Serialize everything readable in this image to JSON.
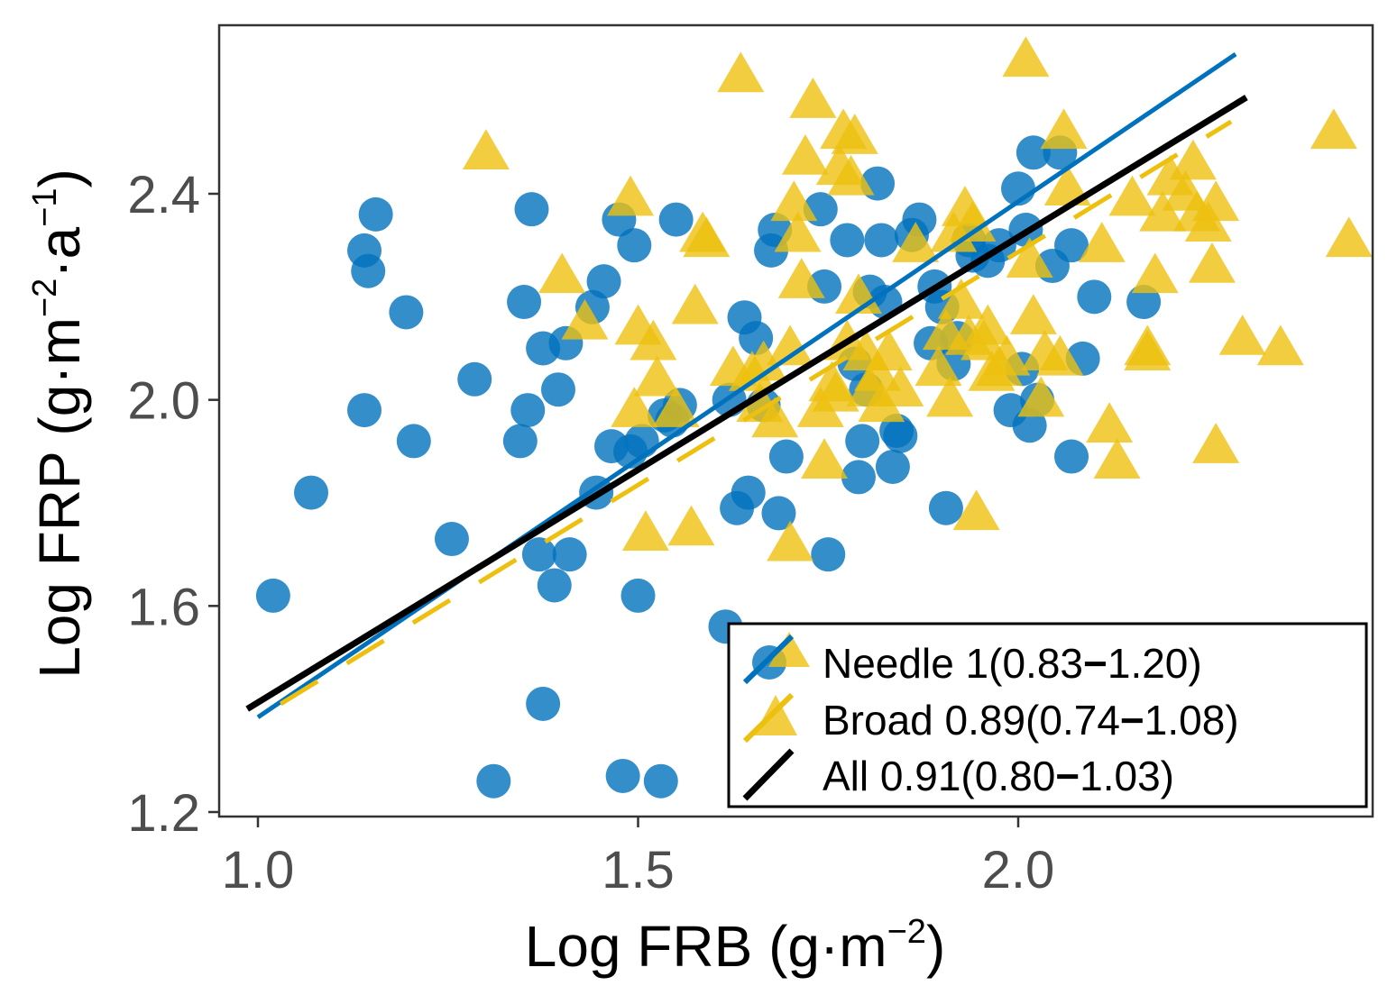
{
  "chart_data": {
    "type": "scatter",
    "title": "",
    "xlabel": "Log FRB (g·m⁻²)",
    "ylabel": "Log FRP (g·m⁻²·a⁻¹)",
    "xlabel_parts": {
      "main": "Log FRB (g·m",
      "sup": "−2",
      "end": ")"
    },
    "ylabel_parts": {
      "main": "Log FRP (g·m",
      "sup1": "−2",
      "mid": "·a",
      "sup2": "−1",
      "end": ")"
    },
    "xlim": [
      0.95,
      2.46
    ],
    "ylim": [
      1.195,
      2.72
    ],
    "xticks": [
      1.0,
      1.5,
      2.0
    ],
    "xtick_labels": [
      "1.0",
      "1.5",
      "2.0"
    ],
    "yticks": [
      1.2,
      1.6,
      2.0,
      2.4
    ],
    "ytick_labels": [
      "1.2",
      "1.6",
      "2.0",
      "2.4"
    ],
    "grid": false,
    "legend_position": "bottom-right",
    "colors": {
      "needle": "#0072BD",
      "broad": "#EDC00F",
      "all": "#000000",
      "axis": "#333333",
      "tick_text": "#4d4d4d"
    },
    "series": [
      {
        "name": "Needle",
        "legend_label": "Needle 1(0.83−1.20)",
        "marker": "circle",
        "color": "#0072BD",
        "points": [
          [
            1.02,
            1.62
          ],
          [
            1.07,
            1.82
          ],
          [
            1.14,
            1.98
          ],
          [
            1.14,
            2.29
          ],
          [
            1.145,
            2.25
          ],
          [
            1.155,
            2.36
          ],
          [
            1.195,
            2.17
          ],
          [
            1.205,
            1.92
          ],
          [
            1.255,
            1.73
          ],
          [
            1.285,
            2.04
          ],
          [
            1.31,
            1.26
          ],
          [
            1.345,
            1.92
          ],
          [
            1.35,
            2.19
          ],
          [
            1.355,
            1.98
          ],
          [
            1.36,
            2.37
          ],
          [
            1.37,
            1.7
          ],
          [
            1.375,
            2.1
          ],
          [
            1.375,
            1.41
          ],
          [
            1.39,
            1.64
          ],
          [
            1.395,
            2.02
          ],
          [
            1.405,
            2.11
          ],
          [
            1.41,
            1.7
          ],
          [
            1.44,
            2.18
          ],
          [
            1.445,
            1.82
          ],
          [
            1.455,
            2.23
          ],
          [
            1.465,
            1.91
          ],
          [
            1.475,
            2.35
          ],
          [
            1.48,
            1.27
          ],
          [
            1.49,
            1.9
          ],
          [
            1.495,
            2.3
          ],
          [
            1.5,
            1.62
          ],
          [
            1.505,
            1.92
          ],
          [
            1.53,
            1.26
          ],
          [
            1.535,
            1.97
          ],
          [
            1.545,
            1.96
          ],
          [
            1.55,
            2.35
          ],
          [
            1.555,
            1.99
          ],
          [
            1.615,
            1.56
          ],
          [
            1.62,
            2.0
          ],
          [
            1.63,
            1.79
          ],
          [
            1.64,
            2.16
          ],
          [
            1.645,
            1.82
          ],
          [
            1.655,
            2.12
          ],
          [
            1.665,
            1.99
          ],
          [
            1.675,
            2.29
          ],
          [
            1.68,
            2.33
          ],
          [
            1.685,
            1.78
          ],
          [
            1.695,
            1.89
          ],
          [
            1.74,
            2.37
          ],
          [
            1.745,
            2.22
          ],
          [
            1.75,
            1.7
          ],
          [
            1.775,
            2.31
          ],
          [
            1.785,
            2.07
          ],
          [
            1.79,
            1.85
          ],
          [
            1.795,
            1.92
          ],
          [
            1.8,
            2.02
          ],
          [
            1.805,
            2.21
          ],
          [
            1.815,
            2.42
          ],
          [
            1.82,
            2.31
          ],
          [
            1.825,
            2.19
          ],
          [
            1.835,
            1.87
          ],
          [
            1.84,
            1.94
          ],
          [
            1.845,
            1.93
          ],
          [
            1.86,
            2.32
          ],
          [
            1.87,
            2.35
          ],
          [
            1.885,
            2.11
          ],
          [
            1.89,
            2.22
          ],
          [
            1.9,
            2.18
          ],
          [
            1.905,
            1.79
          ],
          [
            1.915,
            2.07
          ],
          [
            1.92,
            2.12
          ],
          [
            1.935,
            2.31
          ],
          [
            1.94,
            2.28
          ],
          [
            1.96,
            2.27
          ],
          [
            1.975,
            2.3
          ],
          [
            1.99,
            1.98
          ],
          [
            2.0,
            2.41
          ],
          [
            2.005,
            2.06
          ],
          [
            2.01,
            2.33
          ],
          [
            2.015,
            1.95
          ],
          [
            2.02,
            2.48
          ],
          [
            2.025,
            2.0
          ],
          [
            2.045,
            2.26
          ],
          [
            2.055,
            2.48
          ],
          [
            2.07,
            2.3
          ],
          [
            2.07,
            1.89
          ],
          [
            2.085,
            2.08
          ],
          [
            2.1,
            2.2
          ],
          [
            2.165,
            2.19
          ]
        ]
      },
      {
        "name": "Broad",
        "legend_label": "Broad 0.89(0.74−1.08)",
        "marker": "triangle",
        "color": "#EDC00F",
        "points": [
          [
            1.3,
            2.48
          ],
          [
            1.4,
            2.24
          ],
          [
            1.43,
            2.15
          ],
          [
            1.49,
            2.39
          ],
          [
            1.495,
            1.98
          ],
          [
            1.5,
            2.14
          ],
          [
            1.51,
            1.74
          ],
          [
            1.52,
            2.11
          ],
          [
            1.525,
            2.04
          ],
          [
            1.55,
            1.98
          ],
          [
            1.57,
            1.75
          ],
          [
            1.575,
            2.18
          ],
          [
            1.585,
            2.32
          ],
          [
            1.59,
            2.31
          ],
          [
            1.625,
            2.06
          ],
          [
            1.635,
            2.63
          ],
          [
            1.65,
            2.05
          ],
          [
            1.66,
            1.99
          ],
          [
            1.665,
            2.07
          ],
          [
            1.68,
            1.96
          ],
          [
            1.7,
            2.1
          ],
          [
            1.7,
            1.72
          ],
          [
            1.705,
            2.38
          ],
          [
            1.71,
            2.32
          ],
          [
            1.715,
            2.23
          ],
          [
            1.72,
            2.47
          ],
          [
            1.73,
            2.58
          ],
          [
            1.74,
            1.98
          ],
          [
            1.745,
            1.88
          ],
          [
            1.755,
            2.03
          ],
          [
            1.76,
            2.01
          ],
          [
            1.765,
            2.45
          ],
          [
            1.77,
            2.52
          ],
          [
            1.775,
            2.11
          ],
          [
            1.78,
            2.43
          ],
          [
            1.785,
            2.51
          ],
          [
            1.79,
            2.2
          ],
          [
            1.8,
            2.09
          ],
          [
            1.805,
            2.02
          ],
          [
            1.815,
            2.05
          ],
          [
            1.82,
            1.99
          ],
          [
            1.83,
            2.09
          ],
          [
            1.845,
            2.02
          ],
          [
            1.865,
            2.3
          ],
          [
            1.895,
            2.06
          ],
          [
            1.905,
            2.13
          ],
          [
            1.91,
            2.0
          ],
          [
            1.915,
            2.32
          ],
          [
            1.925,
            2.19
          ],
          [
            1.93,
            2.37
          ],
          [
            1.935,
            2.12
          ],
          [
            1.94,
            2.34
          ],
          [
            1.945,
            1.78
          ],
          [
            1.955,
            2.11
          ],
          [
            1.96,
            2.14
          ],
          [
            1.965,
            2.05
          ],
          [
            1.975,
            2.06
          ],
          [
            1.985,
            2.08
          ],
          [
            2.01,
            2.66
          ],
          [
            2.015,
            2.27
          ],
          [
            2.02,
            2.16
          ],
          [
            2.03,
            2.0
          ],
          [
            2.035,
            2.09
          ],
          [
            2.055,
            2.08
          ],
          [
            2.06,
            2.52
          ],
          [
            2.065,
            2.41
          ],
          [
            2.11,
            2.3
          ],
          [
            2.12,
            1.95
          ],
          [
            2.13,
            1.88
          ],
          [
            2.15,
            2.39
          ],
          [
            2.17,
            2.1
          ],
          [
            2.17,
            2.09
          ],
          [
            2.18,
            2.24
          ],
          [
            2.19,
            2.36
          ],
          [
            2.2,
            2.43
          ],
          [
            2.22,
            2.4
          ],
          [
            2.23,
            2.46
          ],
          [
            2.235,
            2.36
          ],
          [
            2.25,
            2.34
          ],
          [
            2.255,
            2.26
          ],
          [
            2.26,
            2.38
          ],
          [
            2.26,
            1.91
          ],
          [
            2.295,
            2.12
          ],
          [
            2.345,
            2.1
          ],
          [
            2.415,
            2.52
          ],
          [
            2.435,
            2.31
          ]
        ]
      }
    ],
    "fit_lines": [
      {
        "name": "Needle fit",
        "color": "#0072BD",
        "style": "solid",
        "x": [
          1.0,
          2.286
        ],
        "y": [
          1.384,
          2.671
        ]
      },
      {
        "name": "Broad fit",
        "color": "#EDC00F",
        "style": "dashed",
        "x": [
          1.03,
          2.28
        ],
        "y": [
          1.41,
          2.54
        ]
      },
      {
        "name": "All fit",
        "color": "#000000",
        "style": "solid",
        "x": [
          0.986,
          2.3
        ],
        "y": [
          1.4,
          2.587
        ]
      }
    ],
    "legend": [
      {
        "label": "Needle 1(0.83−1.20)",
        "label_parts": [
          "Needle 1(0.83",
          "1.20)"
        ],
        "symbol": "circle+solid-line",
        "color": "#0072BD"
      },
      {
        "label": "Broad 0.89(0.74−1.08)",
        "label_parts": [
          "Broad 0.89(0.74",
          "1.08)"
        ],
        "symbol": "triangle+dashed-line",
        "color": "#EDC00F"
      },
      {
        "label": "All 0.91(0.80−1.03)",
        "label_parts": [
          "All 0.91(0.80",
          "1.03)"
        ],
        "symbol": "solid-line",
        "color": "#000000"
      }
    ]
  }
}
